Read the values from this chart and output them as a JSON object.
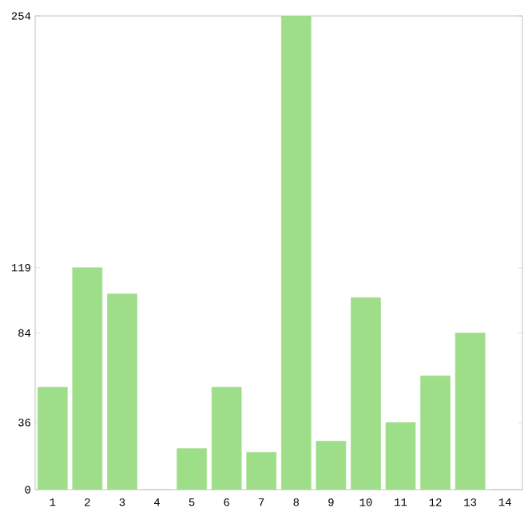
{
  "chart_data": {
    "type": "bar",
    "categories": [
      "1",
      "2",
      "3",
      "4",
      "5",
      "6",
      "7",
      "8",
      "9",
      "10",
      "11",
      "12",
      "13",
      "14"
    ],
    "values": [
      55,
      119,
      105,
      0,
      22,
      55,
      20,
      254,
      26,
      103,
      36,
      61,
      84,
      0
    ],
    "color": "#9ede88",
    "ylim": [
      0,
      254
    ],
    "yticks": [
      0,
      36,
      84,
      119,
      254
    ],
    "grid": false
  }
}
